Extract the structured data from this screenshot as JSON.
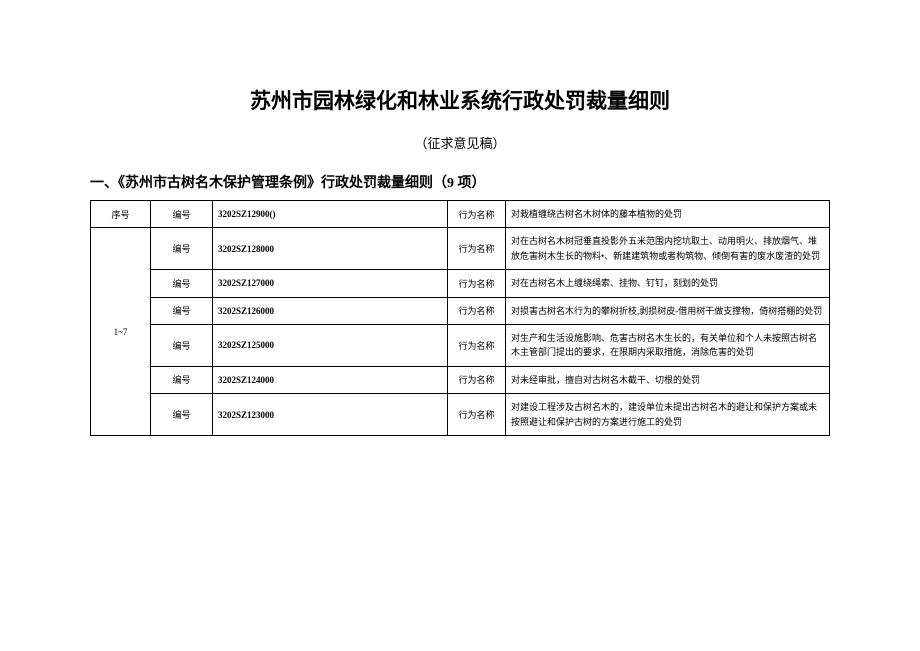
{
  "title": "苏州市园林绿化和林业系统行政处罚裁量细则",
  "subtitle": "（征求意见稿）",
  "section_heading": "一、《苏州市古树名木保护管理条例》行政处罚裁量细则（9 项）",
  "header": {
    "seq": "序号",
    "bh": "编号",
    "code": "3202SZ12900()",
    "bname": "行为名称",
    "desc": "对栽植缠绕古树名木树体的藤本植物的处罚"
  },
  "merged_seq": "1~7",
  "label_bh": "编号",
  "label_bname": "行为名称",
  "rows": [
    {
      "code": "3202SZ128000",
      "desc": "对在古树名木树冠垂直投影外五米范围内挖坑取土、动用明火、排放烟气、堆放危害树木生长的物料•、新建建筑物或者构筑物、倾倒有害的废水废渣的处罚"
    },
    {
      "code": "3202SZ127000",
      "desc": "对在古树名木上缠绕绳索、挂物、钉钉，刻划的处罚"
    },
    {
      "code": "3202SZ126000",
      "desc": "对损害古树名木行为的攀树折枝,剥损树皮-借用树干做支撑物，倚树搭棚的处罚"
    },
    {
      "code": "3202SZ125000",
      "desc": "对生产和生活设施影响、危害古树名木生长的，有关单位和个人未按照古树名木主管部门提出的要求，在限期内采取措施，消除危害的处罚"
    },
    {
      "code": "3202SZ124000",
      "desc": "对未经审批，擅自对古树名木截干、切根的处罚"
    },
    {
      "code": "3202SZ123000",
      "desc": "对建设工程涉及古树名木的，建设单位未提出古树名木的避让和保护方案或未按照避让和保护古树的方案进行施工的处罚"
    }
  ]
}
